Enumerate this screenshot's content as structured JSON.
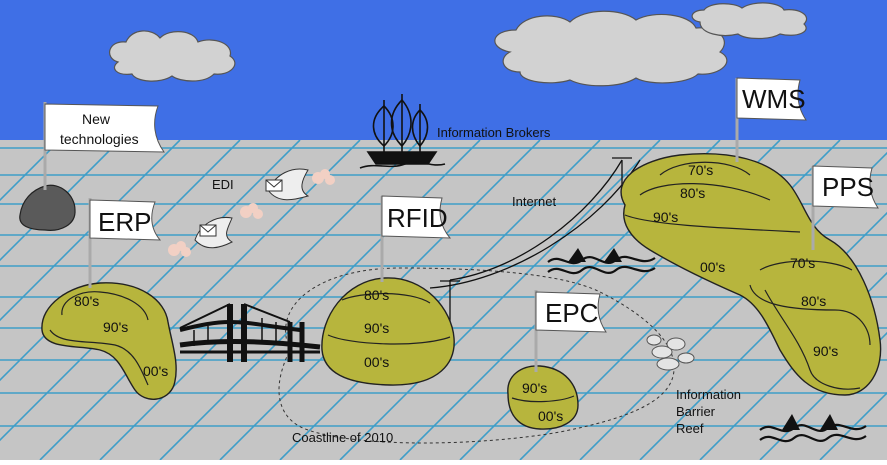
{
  "islands": {
    "erp": {
      "flag": "ERP",
      "eras": [
        "80's",
        "90's",
        "00's"
      ]
    },
    "rfid": {
      "flag": "RFID",
      "eras": [
        "80's",
        "90's",
        "00's"
      ]
    },
    "epc": {
      "flag": "EPC",
      "eras": [
        "90's",
        "00's"
      ]
    },
    "wms": {
      "flag": "WMS",
      "eras": [
        "70's",
        "80's",
        "90's",
        "00's"
      ]
    },
    "pps": {
      "flag": "PPS",
      "eras": [
        "70's",
        "80's",
        "90's"
      ]
    },
    "new_tech": {
      "flag_line1": "New",
      "flag_line2": "technologies"
    }
  },
  "labels": {
    "edi": "EDI",
    "information_brokers": "Information Brokers",
    "internet": "Internet",
    "coastline": "Coastline of 2010",
    "reef_line1": "Information",
    "reef_line2": "Barrier",
    "reef_line3": "Reef"
  },
  "colors": {
    "sky": "#3f6fe6",
    "sea": "#c5c5c5",
    "grid": "#3e9ec8",
    "island": "#b7b53d",
    "rock": "#5a5a5a"
  }
}
